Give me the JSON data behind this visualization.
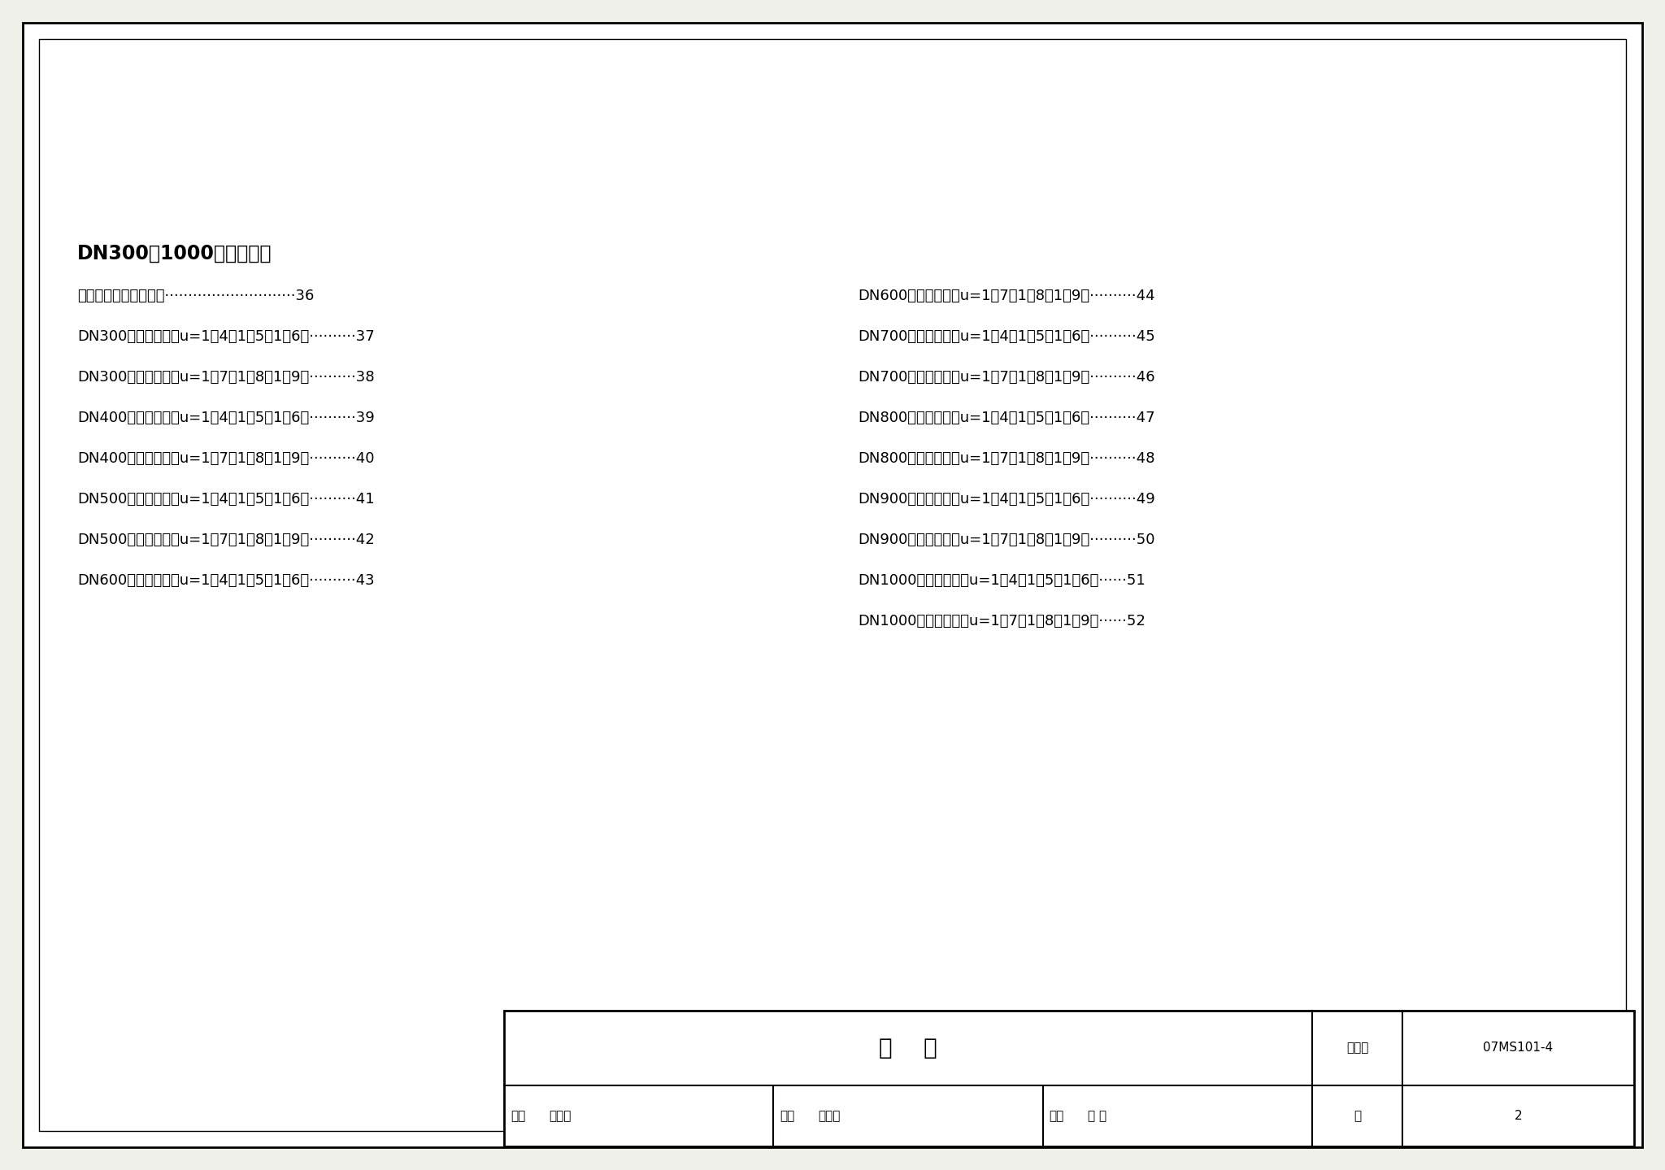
{
  "background_color": "#f0f0eb",
  "page_bg": "#ffffff",
  "border_color": "#000000",
  "title_bold": "DN300～1000支墩选用表",
  "left_texts": [
    "支墩构造图及相关参数",
    "DN300支墩选用表（u=1／4、1／5、1／6）",
    "DN300支墩选用表（u=1／7、1／8、1／9）",
    "DN400支墩选用表（u=1／4、1／5、1／6）",
    "DN400支墩选用表（u=1／7、1／8、1／9）",
    "DN500支墩选用表（u=1／4、1／5、1／6）",
    "DN500支墩选用表（u=1／7、1／8、1／9）",
    "DN600支墩选用表（u=1／4、1／5、1／6）"
  ],
  "left_dots": [
    "····························",
    "··········",
    "··········",
    "··········",
    "··········",
    "··········",
    "··········",
    "··········"
  ],
  "left_pages": [
    "36",
    "37",
    "38",
    "39",
    "40",
    "41",
    "42",
    "43"
  ],
  "right_texts": [
    "DN600支墩选用表（u=1／7、1／8、1／9）",
    "DN700支墩选用表（u=1／4、1／5、1／6）",
    "DN700支墩选用表（u=1／7、1／8、1／9）",
    "DN800支墩选用表（u=1／4、1／5、1／6）",
    "DN800支墩选用表（u=1／7、1／8、1／9）",
    "DN900支墩选用表（u=1／4、1／5、1／6）",
    "DN900支墩选用表（u=1／7、1／8、1／9）",
    "DN1000支墩选用表（u=1／4、1／5、1／6）",
    "DN1000支墩选用表（u=1／7、1／8、1／9）"
  ],
  "right_dots": [
    "··········",
    "··········",
    "··········",
    "··········",
    "··········",
    "··········",
    "··········",
    "······",
    "······"
  ],
  "right_pages": [
    "44",
    "45",
    "46",
    "47",
    "48",
    "49",
    "50",
    "51",
    "52"
  ],
  "footer_title": "目    录",
  "footer_label_tujiji": "图集号",
  "footer_value_tujiji": "07MS101-4",
  "footer_label_shenhe": "审核",
  "footer_name_shenhe": "尹克明",
  "footer_label_jiaodui": "校对",
  "footer_name_jiaodui": "王水华",
  "footer_label_sheji": "设计",
  "footer_name_sheji": "李 健",
  "footer_sig_sheji": "李健",
  "footer_label_ye": "页",
  "footer_value_ye": "2"
}
